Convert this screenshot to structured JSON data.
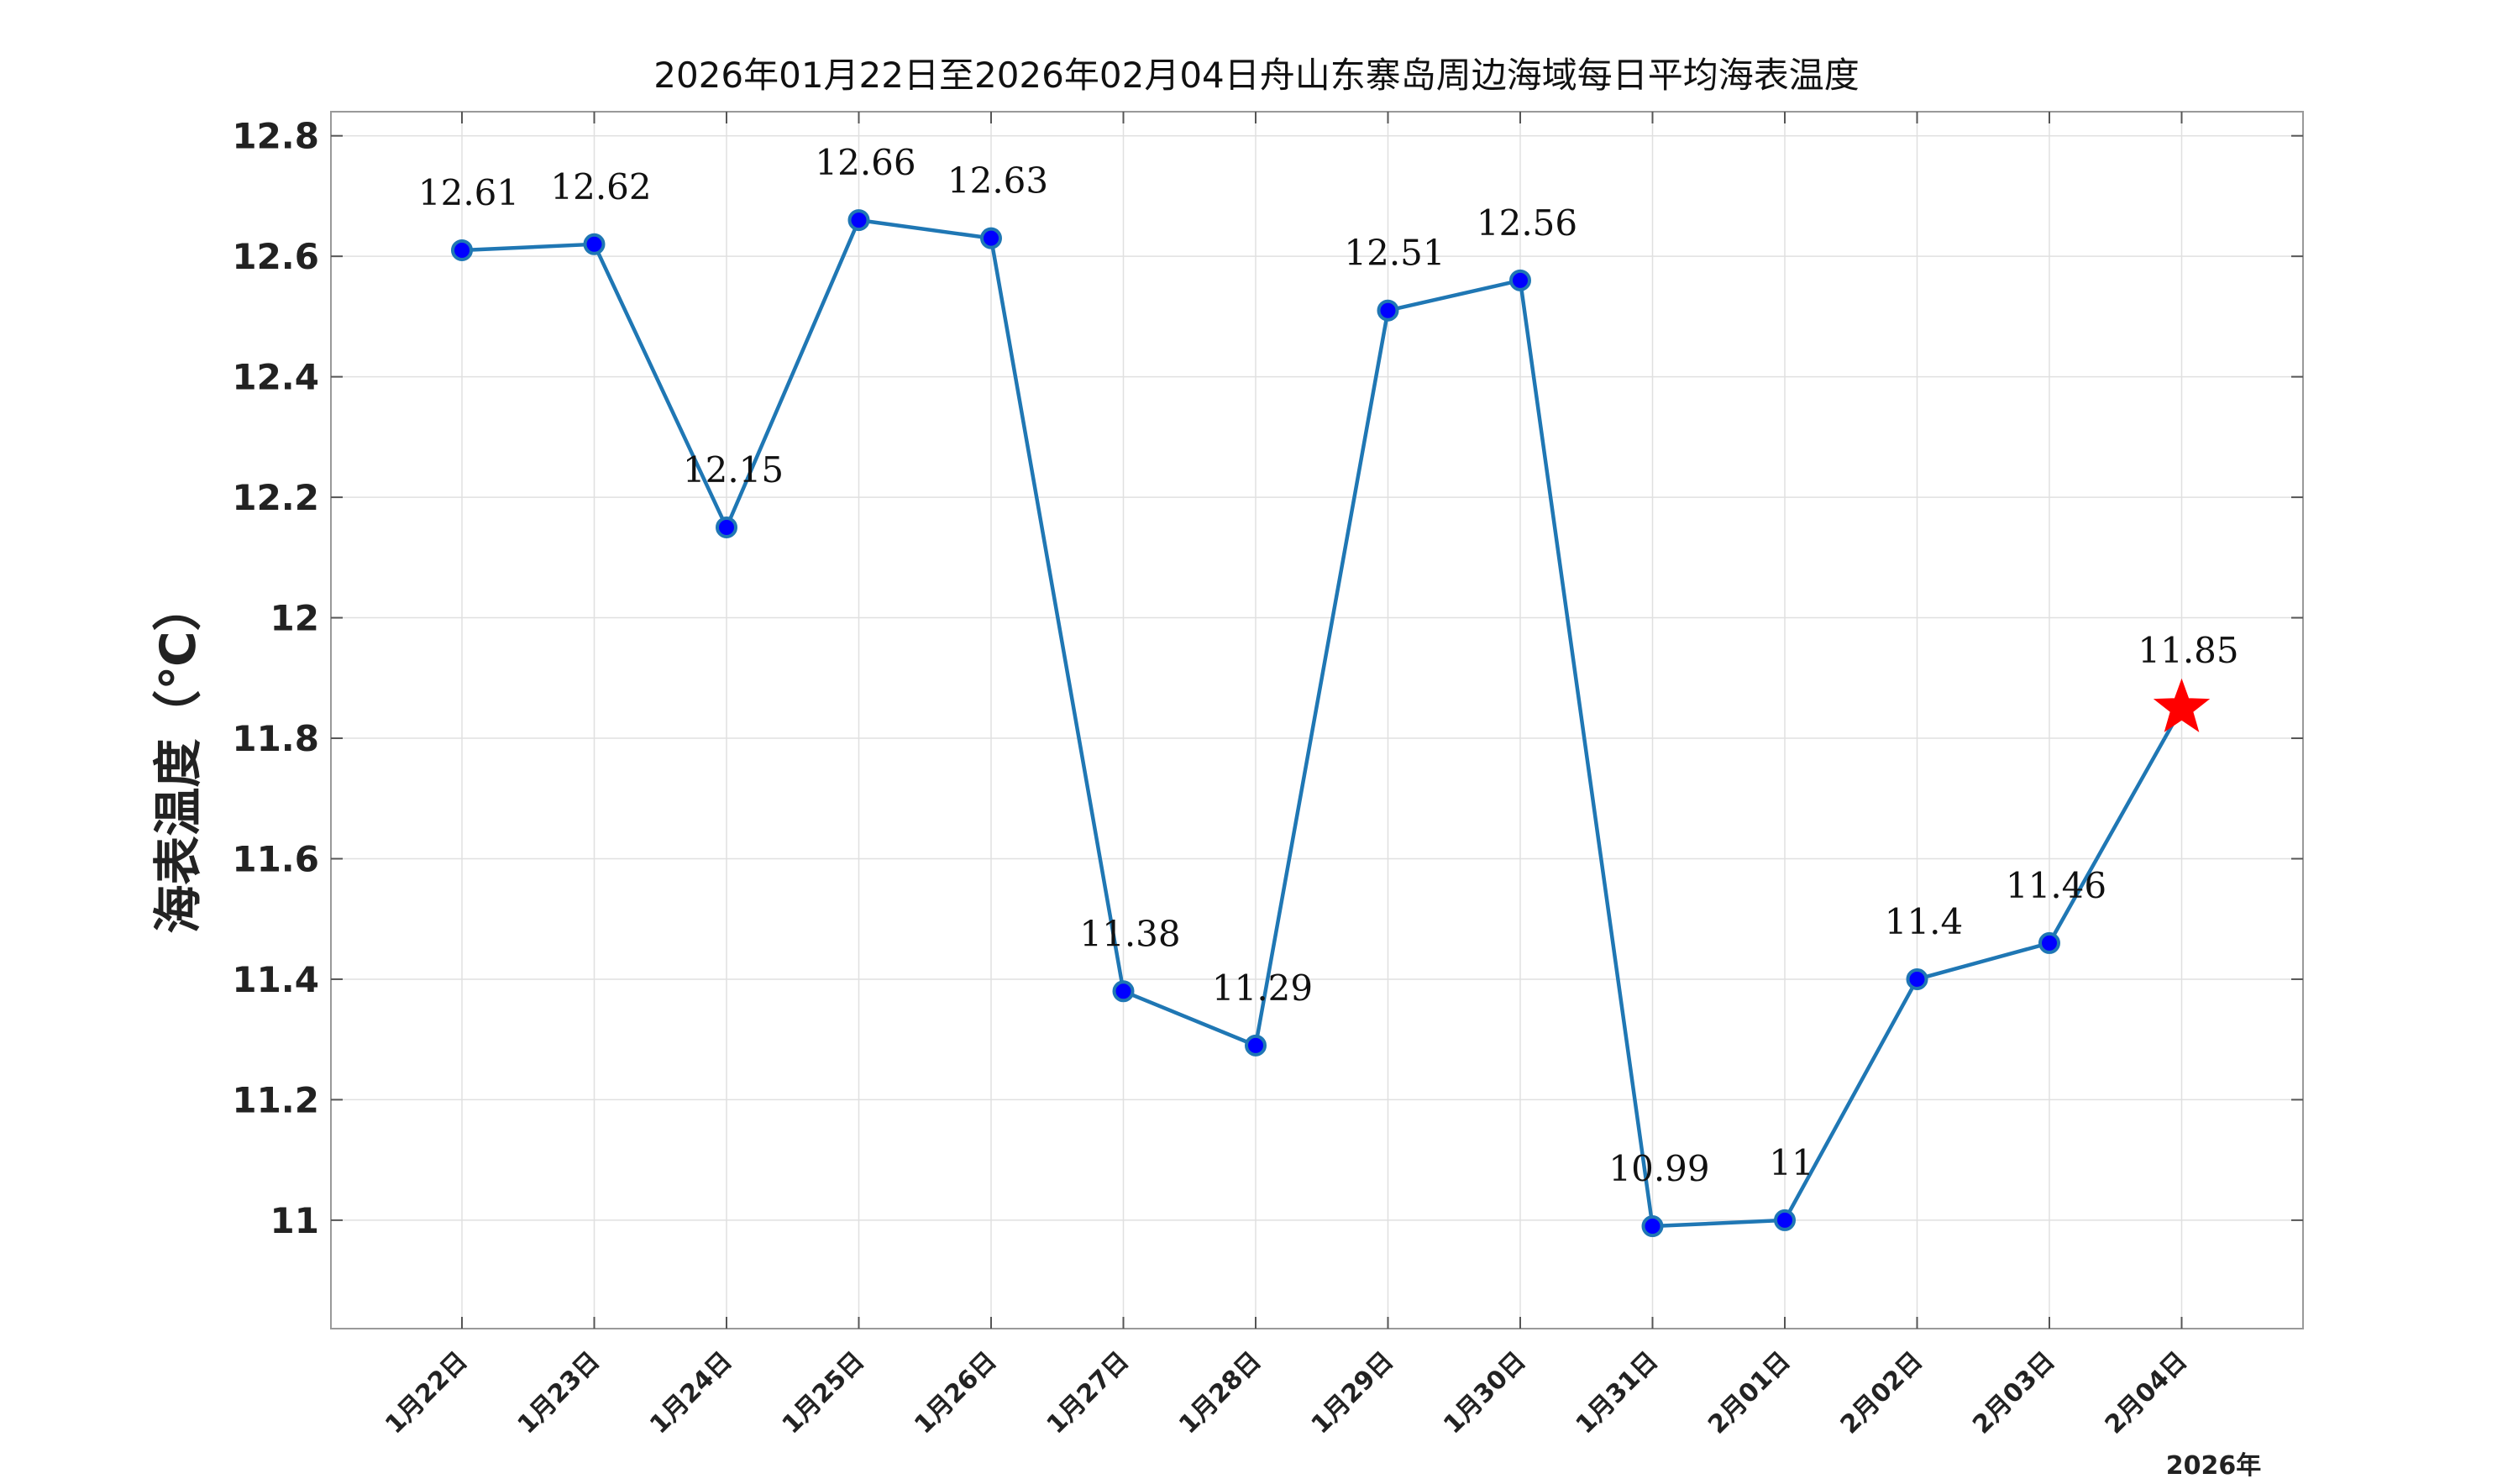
{
  "chart_data": {
    "type": "line",
    "title": "2026年01月22日至2026年02月04日舟山东寨岛周边海域每日平均海表温度",
    "ylabel": "海表温度（℃）",
    "xlabel": "",
    "x_note": "2026年",
    "categories": [
      "1月22日",
      "1月23日",
      "1月24日",
      "1月25日",
      "1月26日",
      "1月27日",
      "1月28日",
      "1月29日",
      "1月30日",
      "1月31日",
      "2月01日",
      "2月02日",
      "2月03日",
      "2月04日"
    ],
    "values": [
      12.61,
      12.62,
      12.15,
      12.66,
      12.63,
      11.38,
      11.29,
      12.51,
      12.56,
      10.99,
      11.0,
      11.4,
      11.46,
      11.85
    ],
    "data_labels": [
      "12.61",
      "12.62",
      "12.15",
      "12.66",
      "12.63",
      "11.38",
      "11.29",
      "12.51",
      "12.56",
      "10.99",
      "11",
      "11.4",
      "11.46",
      "11.85"
    ],
    "yticks": [
      "11",
      "11.2",
      "11.4",
      "11.6",
      "11.8",
      "12",
      "12.2",
      "12.4",
      "12.6",
      "12.8"
    ],
    "ylim": [
      10.82,
      12.84
    ],
    "grid": true,
    "highlight_last_point": "star",
    "colors": {
      "line": "#1f77b4",
      "marker_fill": "#0000ff",
      "marker_edge": "#1f77b4",
      "star": "#ff0000",
      "grid": "#e0e0e0",
      "axes": "#999999"
    }
  }
}
